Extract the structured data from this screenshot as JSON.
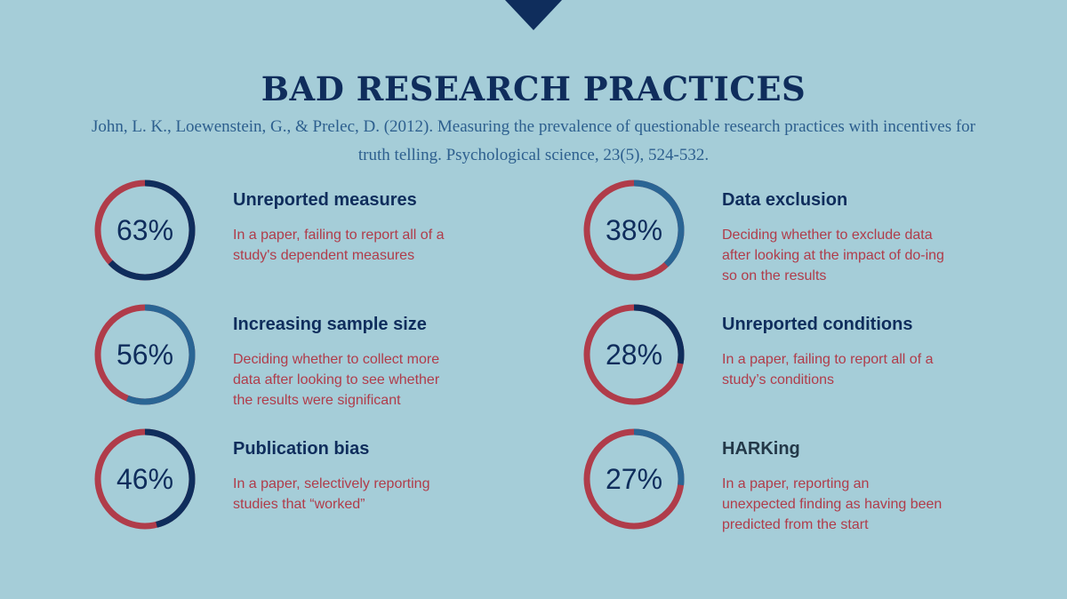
{
  "header": {
    "title": "BAD RESEARCH PRACTICES",
    "citation": "John, L. K., Loewenstein, G., & Prelec, D. (2012). Measuring the prevalence of questionable research practices with incentives for truth telling. Psychological science, 23(5), 524-532."
  },
  "colors": {
    "background": "#a5cdd8",
    "navy": "#0f2d5c",
    "blue": "#2a6594",
    "red": "#b03c4a"
  },
  "chart_data": [
    {
      "type": "pie",
      "value": 63,
      "label": "63%",
      "title": "Unreported measures",
      "description": "In a paper, failing to report all of a study's dependent measures",
      "arc_color": "#0f2d5c"
    },
    {
      "type": "pie",
      "value": 38,
      "label": "38%",
      "title": "Data exclusion",
      "description": "Deciding whether to exclude data after looking at the impact of do-ing so on the results",
      "arc_color": "#2a6594"
    },
    {
      "type": "pie",
      "value": 56,
      "label": "56%",
      "title": "Increasing sample size",
      "description": "Deciding whether to collect more data after looking to see whether the results were significant",
      "arc_color": "#2a6594"
    },
    {
      "type": "pie",
      "value": 28,
      "label": "28%",
      "title": "Unreported conditions",
      "description": "In a paper, failing to report all of a study’s conditions",
      "arc_color": "#0f2d5c"
    },
    {
      "type": "pie",
      "value": 46,
      "label": "46%",
      "title": "Publication bias",
      "description": "In a paper, selectively reporting studies that “worked”",
      "arc_color": "#0f2d5c"
    },
    {
      "type": "pie",
      "value": 27,
      "label": "27%",
      "title": "HARKing",
      "description": "In a paper, reporting an unexpected finding as having been predicted from the start",
      "arc_color": "#2a6594"
    }
  ]
}
